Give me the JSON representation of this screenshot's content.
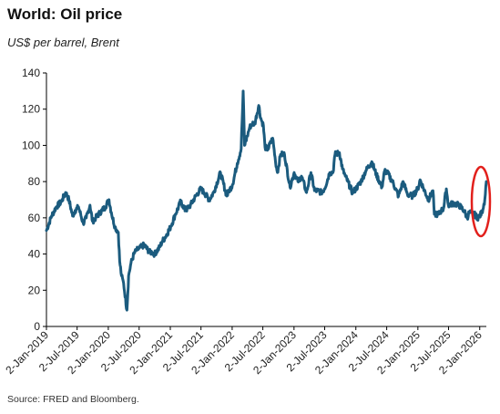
{
  "title": "World: Oil price",
  "subtitle": "US$ per barrel, Brent",
  "source": "Source: FRED and Bloomberg.",
  "colors": {
    "line": "#1b5b7e",
    "annotation": "#e2201c",
    "axis": "#000000"
  },
  "chart_data": {
    "type": "line",
    "title": "World: Oil price",
    "ylabel": "US$ per barrel, Brent",
    "ylim": [
      0,
      140
    ],
    "y_ticks": [
      0,
      20,
      40,
      60,
      80,
      100,
      120,
      140
    ],
    "x_tick_labels": [
      "2-Jan-2019",
      "2-Jul-2019",
      "2-Jan-2020",
      "2-Jul-2020",
      "2-Jan-2021",
      "2-Jul-2021",
      "2-Jan-2022",
      "2-Jul-2022",
      "2-Jan-2023",
      "2-Jul-2023",
      "2-Jan-2024",
      "2-Jul-2024",
      "2-Jan-2025",
      "2-Jul-2025",
      "2-Jan-2026"
    ],
    "grid": false,
    "legend": "none",
    "annotation": "red ellipse around latest values",
    "series": [
      {
        "x": [
          "2019-01-02",
          "2019-02-01",
          "2019-03-01",
          "2019-04-01",
          "2019-04-25",
          "2019-05-15",
          "2019-06-05",
          "2019-06-20",
          "2019-07-10",
          "2019-08-07",
          "2019-08-25",
          "2019-09-16",
          "2019-10-01",
          "2019-10-20",
          "2019-11-15",
          "2019-12-15",
          "2020-01-06",
          "2020-01-20",
          "2020-02-10",
          "2020-03-01",
          "2020-03-09",
          "2020-03-20",
          "2020-04-01",
          "2020-04-21",
          "2020-05-01",
          "2020-05-15",
          "2020-06-01",
          "2020-06-15",
          "2020-07-01",
          "2020-08-01",
          "2020-09-01",
          "2020-09-15",
          "2020-10-01",
          "2020-11-02",
          "2020-11-15",
          "2020-12-01",
          "2021-01-04",
          "2021-02-01",
          "2021-03-05",
          "2021-04-01",
          "2021-05-01",
          "2021-06-01",
          "2021-07-01",
          "2021-07-20",
          "2021-08-20",
          "2021-09-15",
          "2021-10-25",
          "2021-12-01",
          "2021-12-15",
          "2022-01-03",
          "2022-02-01",
          "2022-02-24",
          "2022-03-08",
          "2022-03-16",
          "2022-04-01",
          "2022-04-15",
          "2022-05-01",
          "2022-05-15",
          "2022-06-08",
          "2022-06-20",
          "2022-07-05",
          "2022-07-15",
          "2022-08-01",
          "2022-08-29",
          "2022-09-15",
          "2022-09-26",
          "2022-10-15",
          "2022-11-07",
          "2022-12-09",
          "2023-01-03",
          "2023-01-25",
          "2023-02-15",
          "2023-03-17",
          "2023-04-12",
          "2023-05-03",
          "2023-05-20",
          "2023-06-12",
          "2023-07-01",
          "2023-08-01",
          "2023-08-20",
          "2023-09-01",
          "2023-09-27",
          "2023-10-15",
          "2023-11-01",
          "2023-12-13",
          "2024-01-02",
          "2024-02-01",
          "2024-03-01",
          "2024-04-05",
          "2024-05-01",
          "2024-06-04",
          "2024-06-20",
          "2024-07-05",
          "2024-08-05",
          "2024-09-10",
          "2024-10-07",
          "2024-11-01",
          "2024-12-01",
          "2025-01-02",
          "2025-01-15",
          "2025-02-01",
          "2025-03-05",
          "2025-04-01",
          "2025-04-09",
          "2025-05-05",
          "2025-05-20",
          "2025-06-02",
          "2025-06-19",
          "2025-07-01",
          "2025-08-01",
          "2025-09-01",
          "2025-10-01",
          "2025-10-20",
          "2025-11-01",
          "2025-12-01",
          "2025-12-20",
          "2026-01-02",
          "2026-01-15",
          "2026-02-01",
          "2026-02-10"
        ],
        "values": [
          53,
          61,
          66,
          69,
          74,
          70,
          61,
          64,
          66,
          57,
          60,
          67,
          58,
          60,
          63,
          66,
          70,
          63,
          55,
          52,
          36,
          28,
          24,
          9,
          28,
          35,
          40,
          42,
          43,
          45,
          41,
          41,
          40,
          44,
          47,
          49,
          55,
          62,
          69,
          64,
          67,
          72,
          76,
          74,
          70,
          74,
          85,
          72,
          75,
          78,
          90,
          98,
          130,
          100,
          105,
          110,
          112,
          112,
          122,
          115,
          111,
          99,
          98,
          104,
          91,
          85,
          95,
          95,
          77,
          85,
          80,
          83,
          74,
          85,
          75,
          75,
          74,
          76,
          85,
          85,
          95,
          96,
          87,
          83,
          74,
          76,
          80,
          86,
          91,
          84,
          77,
          86,
          85,
          80,
          72,
          80,
          73,
          72,
          76,
          81,
          77,
          70,
          75,
          62,
          62,
          64,
          65,
          76,
          67,
          68,
          67,
          64,
          60,
          63,
          62,
          60,
          61,
          63,
          70,
          80
        ]
      }
    ]
  }
}
